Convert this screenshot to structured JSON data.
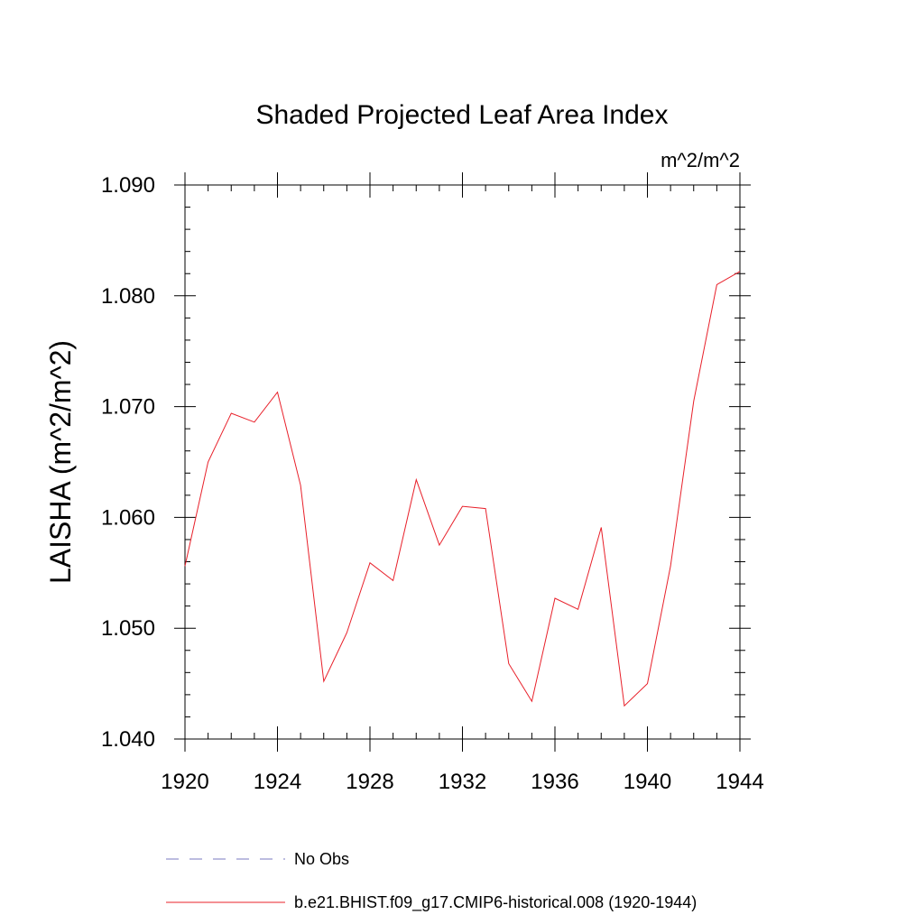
{
  "chart_data": {
    "type": "line",
    "title": "Shaded Projected Leaf Area Index",
    "units": "m^2/m^2",
    "ylabel": "LAISHA  (m^2/m^2)",
    "xlabel": "",
    "xlim": [
      1920,
      1944
    ],
    "ylim": [
      1.04,
      1.09
    ],
    "x_ticks": [
      1920,
      1924,
      1928,
      1932,
      1936,
      1940,
      1944
    ],
    "x_tick_labels": [
      "1920",
      "1924",
      "1928",
      "1932",
      "1936",
      "1940",
      "1944"
    ],
    "y_ticks": [
      1.04,
      1.05,
      1.06,
      1.07,
      1.08,
      1.09
    ],
    "y_tick_labels": [
      "1.040",
      "1.050",
      "1.060",
      "1.070",
      "1.080",
      "1.090"
    ],
    "grid": false,
    "legend_position": "bottom",
    "series": [
      {
        "name": "b.e21.BHIST.f09_g17.CMIP6-historical.008 (1920-1944)",
        "color": "#e8202a",
        "dash": "solid",
        "x": [
          1920,
          1921,
          1922,
          1923,
          1924,
          1925,
          1926,
          1927,
          1928,
          1929,
          1930,
          1931,
          1932,
          1933,
          1934,
          1935,
          1936,
          1937,
          1938,
          1939,
          1940,
          1941,
          1942,
          1943,
          1944
        ],
        "y": [
          1.0556,
          1.065,
          1.0694,
          1.0686,
          1.0713,
          1.0629,
          1.0452,
          1.0496,
          1.0559,
          1.0543,
          1.0634,
          1.0575,
          1.061,
          1.0608,
          1.0468,
          1.0434,
          1.0527,
          1.0517,
          1.0591,
          1.043,
          1.045,
          1.0556,
          1.0705,
          1.081,
          1.0822
        ]
      }
    ],
    "legend": [
      {
        "label": "No Obs",
        "color": "#7a78c0",
        "dash": "dashed"
      },
      {
        "label": "b.e21.BHIST.f09_g17.CMIP6-historical.008 (1920-1944)",
        "color": "#e8202a",
        "dash": "solid"
      }
    ]
  }
}
